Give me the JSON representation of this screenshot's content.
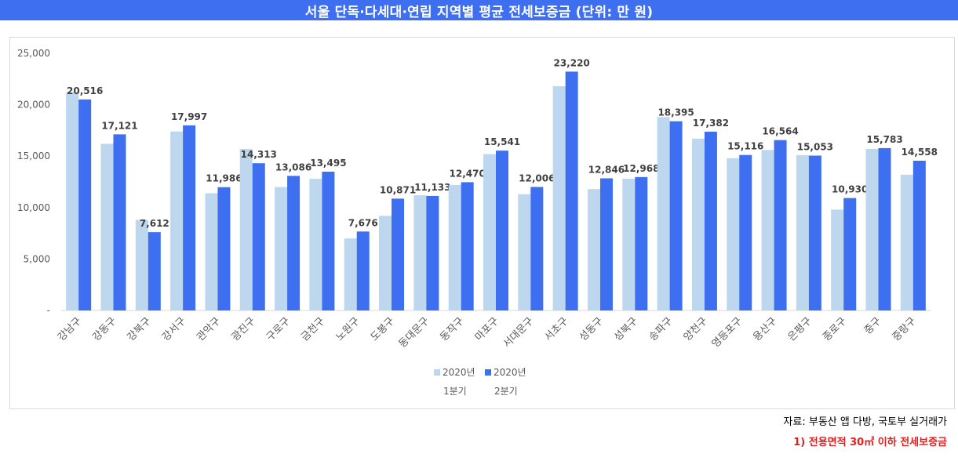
{
  "header": {
    "title": "서울 단독·다세대·연립 지역별 평균 전세보증금 (단위: 만 원)"
  },
  "footer": {
    "source": "자료: 부동산 앱 다방, 국토부 실거래가",
    "note": "1) 전용면적 30㎡ 이하 전세보증금"
  },
  "colors": {
    "title_bg": "#3d6ff0",
    "series_q1": "#bdd7ee",
    "series_q2": "#3d6ff0"
  },
  "chart_data": {
    "type": "bar",
    "title": "서울 단독·다세대·연립 지역별 평균 전세보증금 (단위: 만 원)",
    "categories": [
      "강남구",
      "강동구",
      "강북구",
      "강서구",
      "관악구",
      "광진구",
      "구로구",
      "금천구",
      "노원구",
      "도봉구",
      "동대문구",
      "동작구",
      "마포구",
      "서대문구",
      "서초구",
      "성동구",
      "성북구",
      "송파구",
      "양천구",
      "영등포구",
      "용산구",
      "은평구",
      "종로구",
      "중구",
      "중랑구"
    ],
    "series": [
      {
        "name": "2020년 1분기",
        "legend_line1": "2020년",
        "legend_line2": "1분기",
        "color": "#bdd7ee",
        "values": [
          21200,
          16200,
          8800,
          17400,
          11400,
          15700,
          12000,
          12800,
          7000,
          9200,
          11200,
          12200,
          15200,
          11300,
          21800,
          11800,
          12800,
          18800,
          16700,
          14800,
          15600,
          15100,
          9800,
          15700,
          13200
        ]
      },
      {
        "name": "2020년 2분기",
        "legend_line1": "2020년",
        "legend_line2": "2분기",
        "color": "#3d6ff0",
        "values": [
          20516,
          17121,
          7612,
          17997,
          11986,
          14313,
          13086,
          13495,
          7676,
          10871,
          11133,
          12470,
          15541,
          12006,
          23220,
          12846,
          12968,
          18395,
          17382,
          15116,
          16564,
          15053,
          10930,
          15783,
          14558
        ]
      }
    ],
    "data_labels": [
      "20,516",
      "17,121",
      "7,612",
      "17,997",
      "11,986",
      "14,313",
      "13,086",
      "13,495",
      "7,676",
      "10,871",
      "11,133",
      "12,470",
      "15,541",
      "12,006",
      "23,220",
      "12,846",
      "12,968",
      "18,395",
      "17,382",
      "15,116",
      "16,564",
      "15,053",
      "10,930",
      "15,783",
      "14,558"
    ],
    "y_ticks": [
      0,
      5000,
      10000,
      15000,
      20000,
      25000
    ],
    "y_tick_labels": [
      "-",
      "5,000",
      "10,000",
      "15,000",
      "20,000",
      "25,000"
    ],
    "ylim": [
      0,
      25000
    ],
    "grid": false,
    "legend_position": "bottom"
  }
}
